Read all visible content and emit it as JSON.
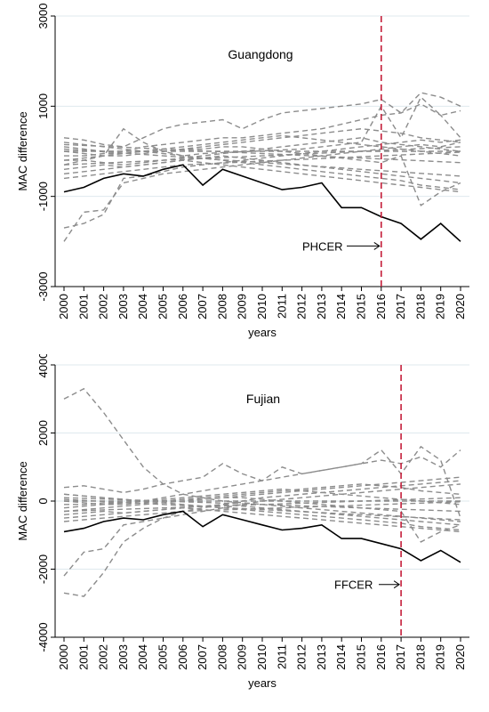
{
  "chart_data": [
    {
      "type": "line",
      "title": "Guangdong",
      "xlabel": "years",
      "ylabel": "MAC difference",
      "x": [
        2000,
        2001,
        2002,
        2003,
        2004,
        2005,
        2006,
        2007,
        2008,
        2009,
        2010,
        2011,
        2012,
        2013,
        2014,
        2015,
        2016,
        2017,
        2018,
        2019,
        2020
      ],
      "yticks": [
        -3000,
        -1000,
        1000,
        3000
      ],
      "ylim": [
        -3000,
        3000
      ],
      "grid": true,
      "treated_series": [
        -900,
        -800,
        -600,
        -500,
        -550,
        -400,
        -300,
        -750,
        -400,
        -550,
        -700,
        -850,
        -800,
        -700,
        -1250,
        -1250,
        -1450,
        -1600,
        -1950,
        -1600,
        -2000
      ],
      "donor_series": [
        [
          -2000,
          -1350,
          -1300,
          -700,
          -600,
          -500,
          -450,
          -400,
          -350,
          -300,
          -250,
          -200,
          -150,
          -100,
          -50,
          0,
          50,
          100,
          150,
          100,
          200
        ],
        [
          -1700,
          -1600,
          -1400,
          -600,
          -550,
          -450,
          -350,
          -300,
          -250,
          -200,
          -150,
          -100,
          -50,
          0,
          50,
          100,
          150,
          200,
          250,
          200,
          250
        ],
        [
          -300,
          -200,
          -100,
          500,
          200,
          0,
          -100,
          -50,
          -30,
          -10,
          10,
          30,
          50,
          100,
          150,
          200,
          1000,
          300,
          1200,
          800,
          900
        ],
        [
          300,
          250,
          150,
          100,
          300,
          500,
          600,
          650,
          700,
          500,
          700,
          850,
          900,
          950,
          1000,
          1050,
          1150,
          850,
          1300,
          1200,
          1000
        ],
        [
          100,
          50,
          0,
          0,
          100,
          150,
          200,
          250,
          300,
          300,
          350,
          400,
          450,
          500,
          600,
          700,
          800,
          850,
          1050,
          800,
          300
        ],
        [
          0,
          -50,
          -100,
          -100,
          -50,
          0,
          50,
          100,
          150,
          200,
          250,
          300,
          350,
          400,
          450,
          500,
          450,
          400,
          300,
          250,
          200
        ],
        [
          -200,
          -200,
          -250,
          -300,
          -250,
          -200,
          -150,
          -100,
          -50,
          0,
          50,
          100,
          150,
          200,
          250,
          300,
          200,
          150,
          100,
          50,
          0
        ],
        [
          -400,
          -350,
          -300,
          -350,
          -300,
          -250,
          -200,
          -150,
          -100,
          -150,
          -200,
          -250,
          -300,
          -350,
          -400,
          -450,
          -500,
          -550,
          -600,
          -650,
          -700
        ],
        [
          -500,
          -450,
          -400,
          -350,
          -300,
          -250,
          -200,
          -250,
          -300,
          -350,
          -400,
          -450,
          -500,
          -550,
          -600,
          -650,
          -700,
          -750,
          -800,
          -850,
          -900
        ],
        [
          200,
          150,
          100,
          50,
          0,
          -50,
          -100,
          -150,
          -200,
          -250,
          -300,
          -350,
          -400,
          -450,
          -500,
          -550,
          -600,
          -650,
          -750,
          -800,
          -850
        ],
        [
          -100,
          -100,
          -50,
          -50,
          0,
          0,
          50,
          50,
          100,
          100,
          50,
          0,
          -50,
          -100,
          -150,
          -200,
          -250,
          -100,
          -1200,
          -900,
          -700
        ],
        [
          -300,
          -280,
          -260,
          -240,
          -220,
          -200,
          -180,
          -160,
          -140,
          -120,
          -100,
          -80,
          -60,
          -40,
          -20,
          0,
          20,
          40,
          60,
          80,
          100
        ],
        [
          150,
          130,
          110,
          90,
          70,
          50,
          30,
          10,
          -10,
          -30,
          -50,
          -70,
          -90,
          -110,
          -130,
          -150,
          -170,
          -190,
          -210,
          -230,
          -250
        ],
        [
          -600,
          -550,
          -500,
          -450,
          -400,
          -350,
          -300,
          -280,
          -260,
          -240,
          -220,
          -200,
          -180,
          -160,
          -140,
          -120,
          -100,
          -80,
          -60,
          -40,
          -20
        ],
        [
          50,
          20,
          -10,
          -40,
          -70,
          -100,
          -130,
          -160,
          -190,
          -220,
          -250,
          -280,
          -310,
          -340,
          -370,
          -400,
          -430,
          -460,
          -490,
          -520,
          -550
        ],
        [
          -200,
          -150,
          -100,
          -50,
          0,
          50,
          100,
          150,
          200,
          250,
          300,
          350,
          300,
          250,
          200,
          150,
          100,
          50,
          0,
          -50,
          -100
        ],
        [
          0,
          0,
          0,
          0,
          0,
          0,
          0,
          0,
          0,
          0,
          0,
          0,
          0,
          0,
          0,
          0,
          0,
          0,
          0,
          0,
          0
        ]
      ],
      "event_year": 2016,
      "annotation": "PHCER",
      "annotation_y": -2100
    },
    {
      "type": "line",
      "title": "Fujian",
      "xlabel": "years",
      "ylabel": "MAC difference",
      "x": [
        2000,
        2001,
        2002,
        2003,
        2004,
        2005,
        2006,
        2007,
        2008,
        2009,
        2010,
        2011,
        2012,
        2013,
        2014,
        2015,
        2016,
        2017,
        2018,
        2019,
        2020
      ],
      "yticks": [
        -4000,
        -2000,
        0,
        2000,
        4000
      ],
      "ylim": [
        -4000,
        4000
      ],
      "grid": true,
      "treated_series": [
        -900,
        -800,
        -600,
        -500,
        -550,
        -400,
        -300,
        -750,
        -400,
        -550,
        -700,
        -850,
        -800,
        -700,
        -1100,
        -1100,
        -1250,
        -1400,
        -1750,
        -1450,
        -1800
      ],
      "donor_series": [
        [
          3000,
          3300,
          2600,
          1800,
          1000,
          500,
          200,
          100,
          0,
          -50,
          -100,
          -150,
          -200,
          -250,
          -300,
          -350,
          -400,
          -450,
          -500,
          -550,
          -600
        ],
        [
          -2700,
          -2800,
          -2100,
          -1200,
          -800,
          -500,
          -300,
          -200,
          -100,
          0,
          100,
          150,
          200,
          250,
          300,
          350,
          400,
          450,
          500,
          550,
          600
        ],
        [
          -2200,
          -1500,
          -1400,
          -700,
          -600,
          -500,
          -400,
          -300,
          -200,
          -100,
          0,
          50,
          100,
          150,
          200,
          250,
          300,
          350,
          400,
          450,
          500
        ],
        [
          400,
          450,
          350,
          250,
          350,
          500,
          600,
          700,
          1100,
          800,
          600,
          1000,
          800,
          900,
          1000,
          1100,
          1500,
          800,
          1600,
          1200,
          -500
        ],
        [
          200,
          150,
          100,
          50,
          0,
          100,
          200,
          300,
          400,
          500,
          600,
          700,
          800,
          900,
          1000,
          1100,
          1200,
          1100,
          1300,
          1000,
          1500
        ],
        [
          0,
          -50,
          -100,
          -100,
          -50,
          0,
          50,
          100,
          150,
          200,
          250,
          300,
          350,
          400,
          450,
          500,
          450,
          400,
          300,
          250,
          200
        ],
        [
          -300,
          -250,
          -200,
          -150,
          -100,
          -50,
          0,
          50,
          100,
          150,
          200,
          250,
          300,
          350,
          400,
          450,
          500,
          550,
          600,
          650,
          700
        ],
        [
          -400,
          -350,
          -300,
          -350,
          -300,
          -250,
          -200,
          -150,
          -100,
          -150,
          -200,
          -250,
          -300,
          -350,
          -400,
          -450,
          -500,
          -550,
          -600,
          -650,
          -700
        ],
        [
          -500,
          -450,
          -400,
          -350,
          -300,
          -250,
          -200,
          -250,
          -300,
          -350,
          -400,
          -450,
          -500,
          -550,
          -600,
          -650,
          -700,
          -750,
          -800,
          -850,
          -900
        ],
        [
          200,
          150,
          100,
          50,
          0,
          -50,
          -100,
          -150,
          -200,
          -250,
          -300,
          -350,
          -400,
          -450,
          -500,
          -550,
          -600,
          -650,
          -750,
          -800,
          -850
        ],
        [
          -100,
          -100,
          -50,
          -50,
          0,
          0,
          50,
          50,
          100,
          100,
          50,
          0,
          -50,
          -100,
          -150,
          -200,
          -250,
          -300,
          -1200,
          -900,
          -700
        ],
        [
          -300,
          -280,
          -260,
          -240,
          -220,
          -200,
          -180,
          -160,
          -140,
          -120,
          -100,
          -80,
          -60,
          -40,
          -20,
          0,
          20,
          40,
          60,
          80,
          100
        ],
        [
          100,
          80,
          60,
          40,
          20,
          0,
          -20,
          -40,
          -60,
          -80,
          -100,
          -120,
          -140,
          -160,
          -180,
          -200,
          -220,
          -240,
          -260,
          -280,
          -300
        ],
        [
          -600,
          -550,
          -500,
          -450,
          -400,
          -350,
          -300,
          -280,
          -260,
          -240,
          -220,
          -200,
          -180,
          -160,
          -140,
          -120,
          -100,
          -80,
          -60,
          -40,
          -20
        ],
        [
          50,
          20,
          -10,
          -40,
          -70,
          -100,
          -130,
          -160,
          -190,
          -220,
          -250,
          -280,
          -310,
          -340,
          -370,
          -400,
          -430,
          -460,
          -490,
          -520,
          -550
        ],
        [
          -200,
          -150,
          -100,
          -50,
          0,
          50,
          100,
          150,
          200,
          250,
          300,
          350,
          300,
          250,
          200,
          150,
          100,
          50,
          0,
          -50,
          -100
        ],
        [
          0,
          0,
          0,
          0,
          0,
          0,
          0,
          0,
          0,
          0,
          0,
          0,
          0,
          0,
          0,
          0,
          0,
          0,
          0,
          0,
          0
        ]
      ],
      "event_year": 2017,
      "annotation": "FFCER",
      "annotation_y": -2450
    }
  ],
  "colors": {
    "treated": "#000000",
    "donor": "#8c8c8c",
    "event_line": "#c41e3a",
    "grid": "#dfe9ee"
  }
}
